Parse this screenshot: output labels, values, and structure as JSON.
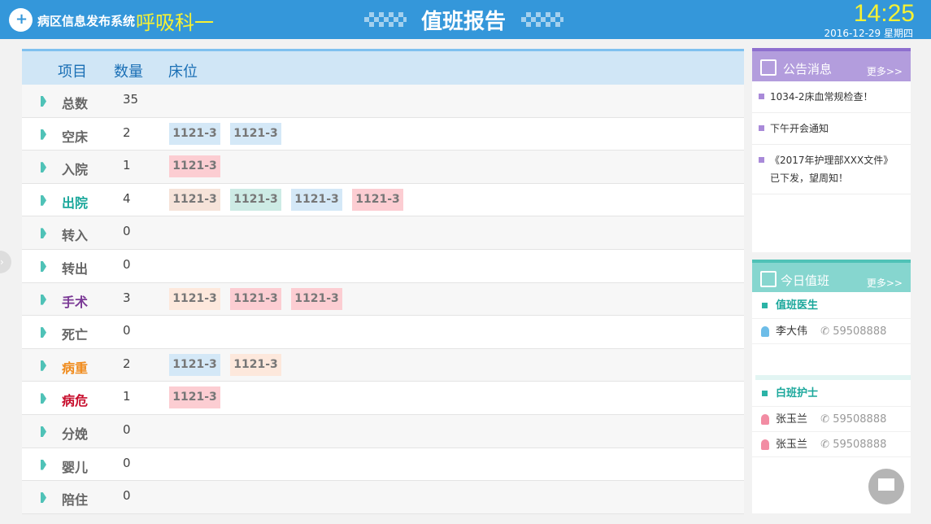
{
  "header": {
    "system_name": "病区信息发布系统",
    "department": "呼吸科一",
    "title": "值班报告",
    "time": "14:25",
    "date": "2016-12-29 星期四"
  },
  "table": {
    "columns": [
      "项目",
      "数量",
      "床位"
    ],
    "tag_colors": {
      "blue": "#d4e8f7",
      "pink": "#fccdd2",
      "peach": "#f6e3d9",
      "mint": "#cdebe5",
      "cream": "#fde8dc"
    },
    "rows": [
      {
        "label": "总数",
        "count": "35",
        "color": "#666666",
        "beds": []
      },
      {
        "label": "空床",
        "count": "2",
        "color": "#666666",
        "beds": [
          {
            "bed": "1121-3",
            "tone": "blue"
          },
          {
            "bed": "1121-3",
            "tone": "blue"
          }
        ]
      },
      {
        "label": "入院",
        "count": "1",
        "color": "#666666",
        "beds": [
          {
            "bed": "1121-3",
            "tone": "pink"
          }
        ]
      },
      {
        "label": "出院",
        "count": "4",
        "color": "#1aa79b",
        "beds": [
          {
            "bed": "1121-3",
            "tone": "peach"
          },
          {
            "bed": "1121-3",
            "tone": "mint"
          },
          {
            "bed": "1121-3",
            "tone": "blue"
          },
          {
            "bed": "1121-3",
            "tone": "pink"
          }
        ]
      },
      {
        "label": "转入",
        "count": "0",
        "color": "#666666",
        "beds": []
      },
      {
        "label": "转出",
        "count": "0",
        "color": "#666666",
        "beds": []
      },
      {
        "label": "手术",
        "count": "3",
        "color": "#7b3a96",
        "beds": [
          {
            "bed": "1121-3",
            "tone": "cream"
          },
          {
            "bed": "1121-3",
            "tone": "pink"
          },
          {
            "bed": "1121-3",
            "tone": "pink"
          }
        ]
      },
      {
        "label": "死亡",
        "count": "0",
        "color": "#666666",
        "beds": []
      },
      {
        "label": "病重",
        "count": "2",
        "color": "#f08c1e",
        "beds": [
          {
            "bed": "1121-3",
            "tone": "blue"
          },
          {
            "bed": "1121-3",
            "tone": "cream"
          }
        ]
      },
      {
        "label": "病危",
        "count": "1",
        "color": "#c8102e",
        "beds": [
          {
            "bed": "1121-3",
            "tone": "pink"
          }
        ]
      },
      {
        "label": "分娩",
        "count": "0",
        "color": "#666666",
        "beds": []
      },
      {
        "label": "婴儿",
        "count": "0",
        "color": "#666666",
        "beds": []
      },
      {
        "label": "陪住",
        "count": "0",
        "color": "#666666",
        "beds": []
      }
    ]
  },
  "notices": {
    "title": "公告消息",
    "more": "更多>>",
    "items": [
      "1034-2床血常规检查！",
      "下午开会通知",
      "《2017年护理部XXX文件》已下发，望周知！"
    ]
  },
  "duty": {
    "title": "今日值班",
    "more": "更多>>",
    "doctor_section": "值班医生",
    "doctors": [
      {
        "name": "李大伟",
        "phone": "59508888"
      }
    ],
    "nurse_section": "白班护士",
    "nurses": [
      {
        "name": "张玉兰",
        "phone": "59508888"
      },
      {
        "name": "张玉兰",
        "phone": "59508888"
      }
    ]
  }
}
